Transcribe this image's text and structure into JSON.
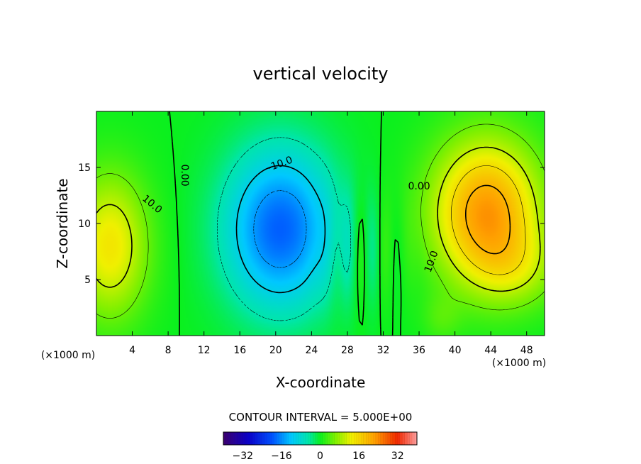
{
  "chart_data": {
    "type": "heatmap",
    "title": "vertical velocity",
    "xlabel": "X-coordinate",
    "ylabel": "Z-coordinate",
    "x_unit": "(×1000 m)",
    "xlim": [
      0,
      50
    ],
    "ylim": [
      0,
      20
    ],
    "x_ticks": [
      4,
      8,
      12,
      16,
      20,
      24,
      28,
      32,
      36,
      40,
      44,
      48
    ],
    "y_ticks": [
      5,
      10,
      15
    ],
    "contour_interval_text": "CONTOUR INTERVAL = 5.000E+00",
    "contour_labels": [
      "10.0",
      "0.00",
      "-10.0",
      "0.00",
      "10.0"
    ],
    "colorbar": {
      "vmin": -40,
      "vmax": 40,
      "ticks": [
        -32,
        -16,
        0,
        16,
        32
      ]
    },
    "features": [
      {
        "kind": "updraft",
        "x": 1.5,
        "z": 8,
        "peak": 14
      },
      {
        "kind": "downdraft",
        "x": 20.5,
        "z": 9.5,
        "peak": -20
      },
      {
        "kind": "updraft",
        "x": 43.5,
        "z": 11,
        "peak": 23
      }
    ]
  }
}
